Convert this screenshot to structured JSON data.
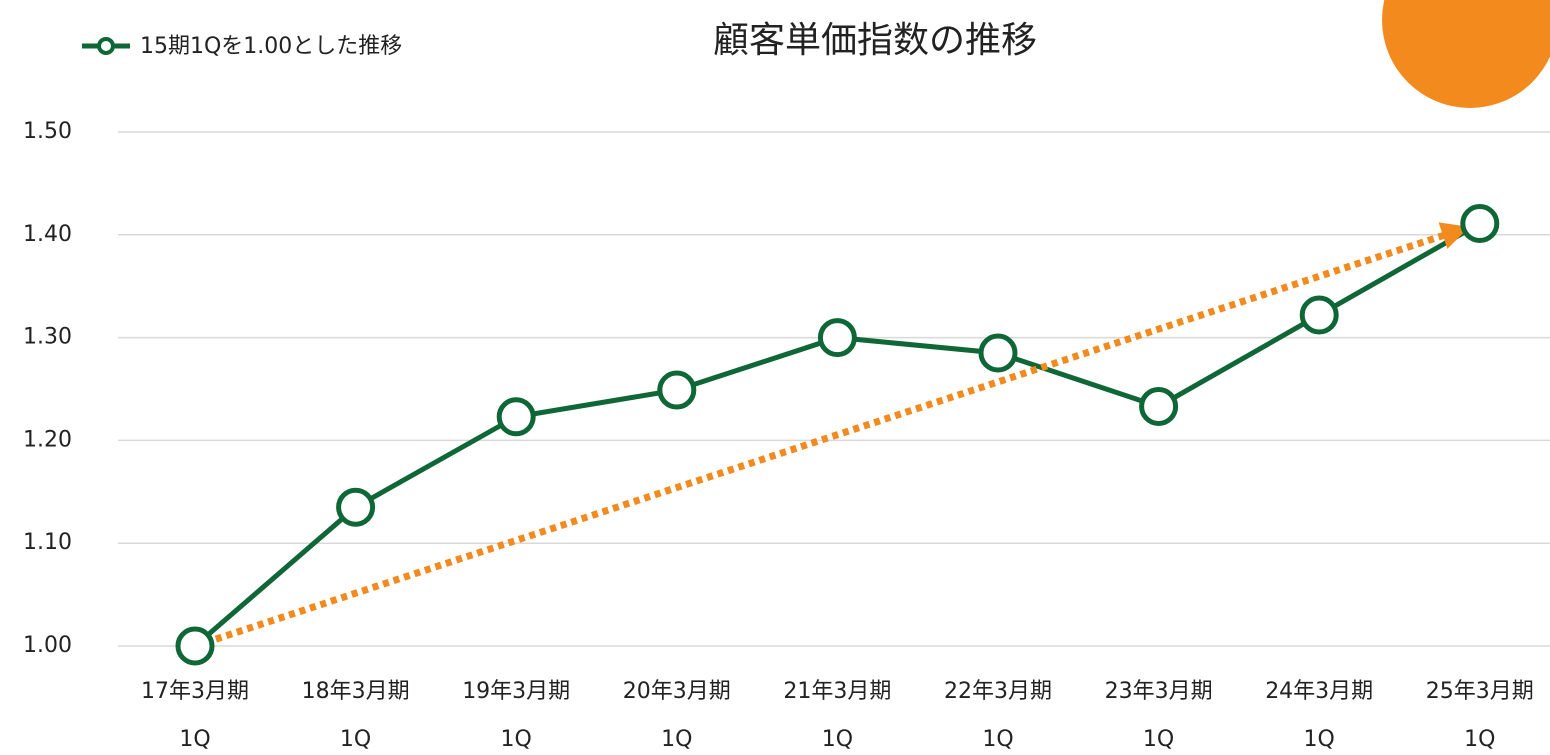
{
  "chart_data": {
    "type": "line",
    "title": "顧客単価指数の推移",
    "categories": [
      "17年3月期\n1Q",
      "18年3月期\n1Q",
      "19年3月期\n1Q",
      "20年3月期\n1Q",
      "21年3月期\n1Q",
      "22年3月期\n1Q",
      "23年3月期\n1Q",
      "24年3月期\n1Q",
      "25年3月期\n1Q"
    ],
    "series": [
      {
        "name": "15期1Qを1.00とした推移",
        "color": "#0f6636",
        "values": [
          1.0,
          1.135,
          1.223,
          1.249,
          1.3,
          1.285,
          1.233,
          1.322,
          1.411
        ]
      }
    ],
    "ylim": [
      1.0,
      1.5
    ],
    "yticks": [
      {
        "value": 1.0,
        "label": "1.00"
      },
      {
        "value": 1.1,
        "label": "1.10"
      },
      {
        "value": 1.2,
        "label": "1.20"
      },
      {
        "value": 1.3,
        "label": "1.30"
      },
      {
        "value": 1.4,
        "label": "1.40"
      },
      {
        "value": 1.5,
        "label": "1.50"
      }
    ],
    "grid": true,
    "legend": "top-left"
  }
}
